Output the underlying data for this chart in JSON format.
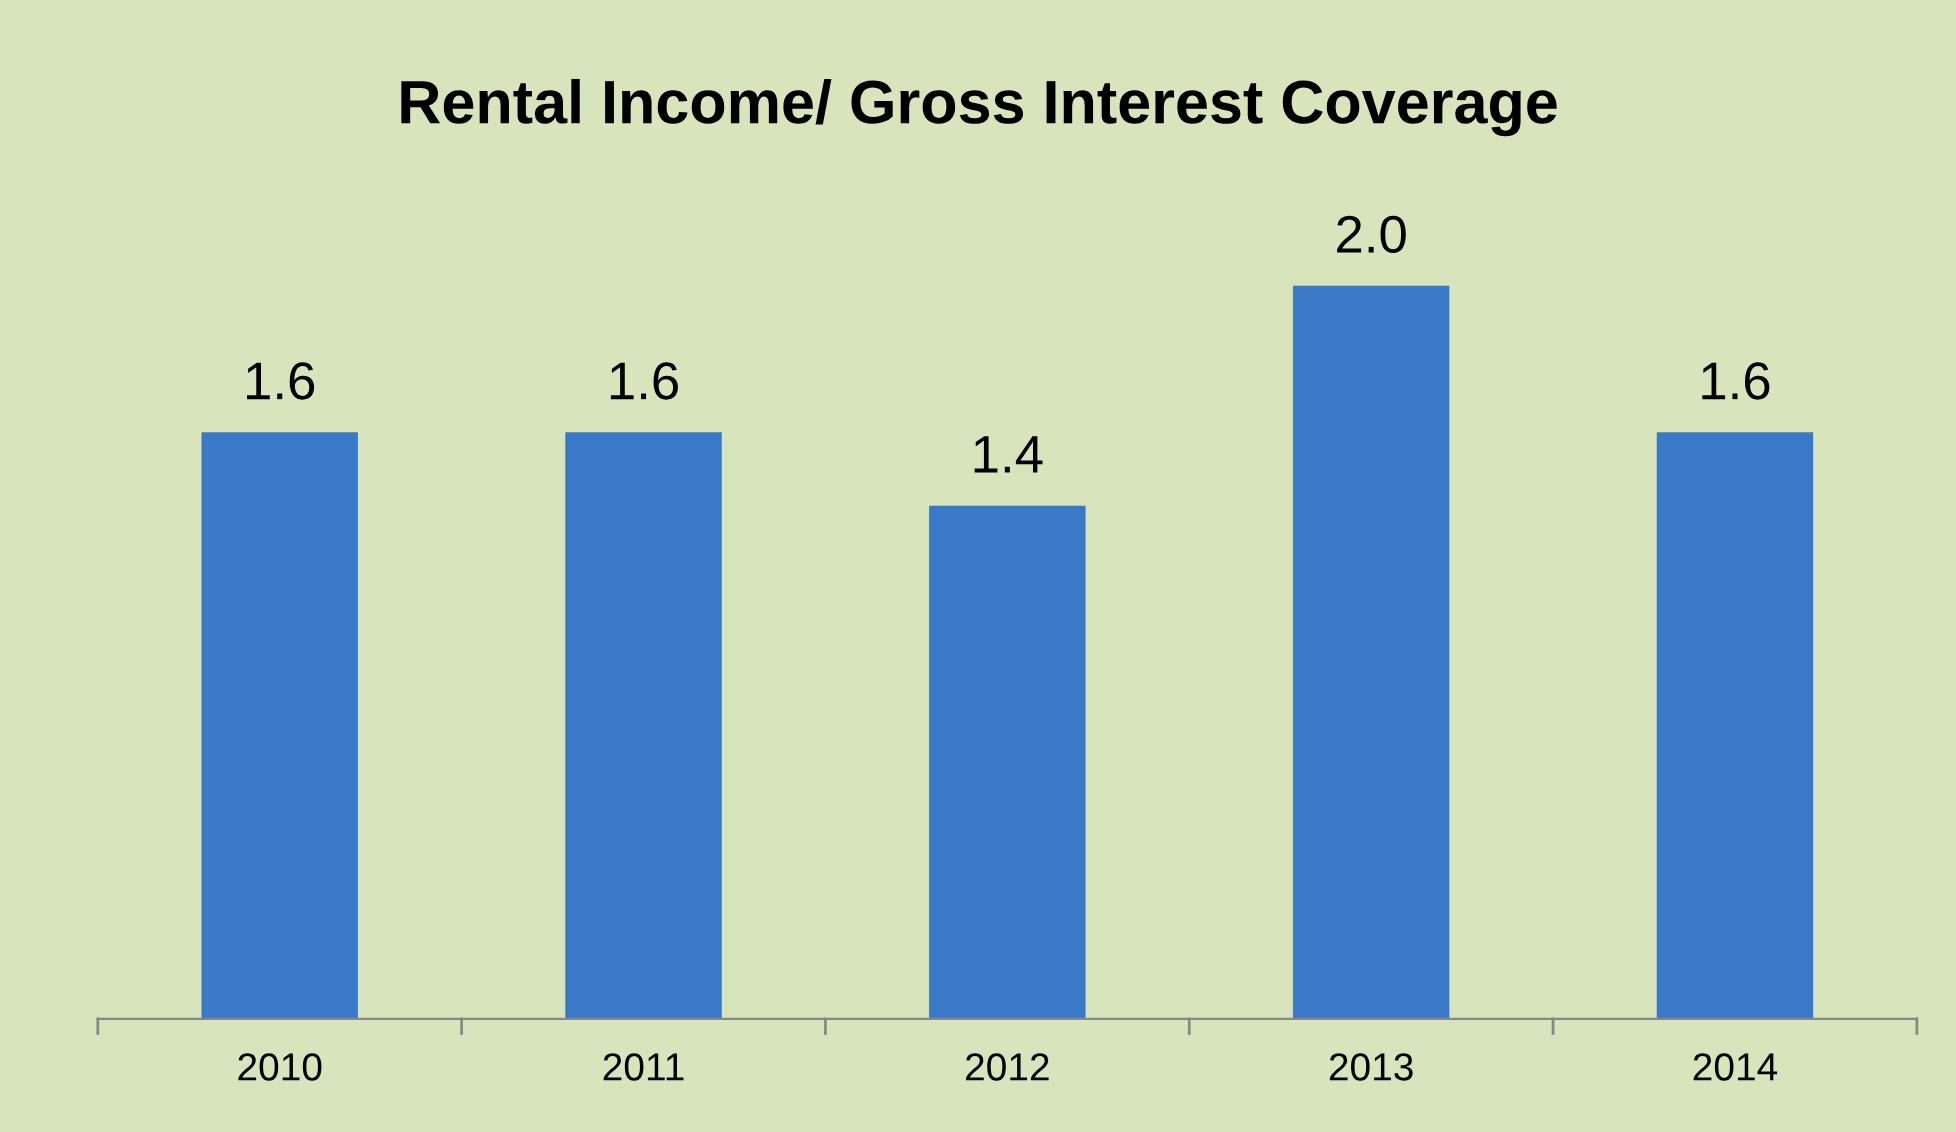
{
  "chart_data": {
    "type": "bar",
    "title": "Rental Income/ Gross Interest Coverage",
    "categories": [
      "2010",
      "2011",
      "2012",
      "2013",
      "2014"
    ],
    "values": [
      1.6,
      1.6,
      1.4,
      2.0,
      1.6
    ],
    "color": "#3a78c8",
    "value_labels": [
      "1.6",
      "1.6",
      "1.4",
      "2.0",
      "1.6"
    ],
    "grid": false,
    "legend": false
  }
}
